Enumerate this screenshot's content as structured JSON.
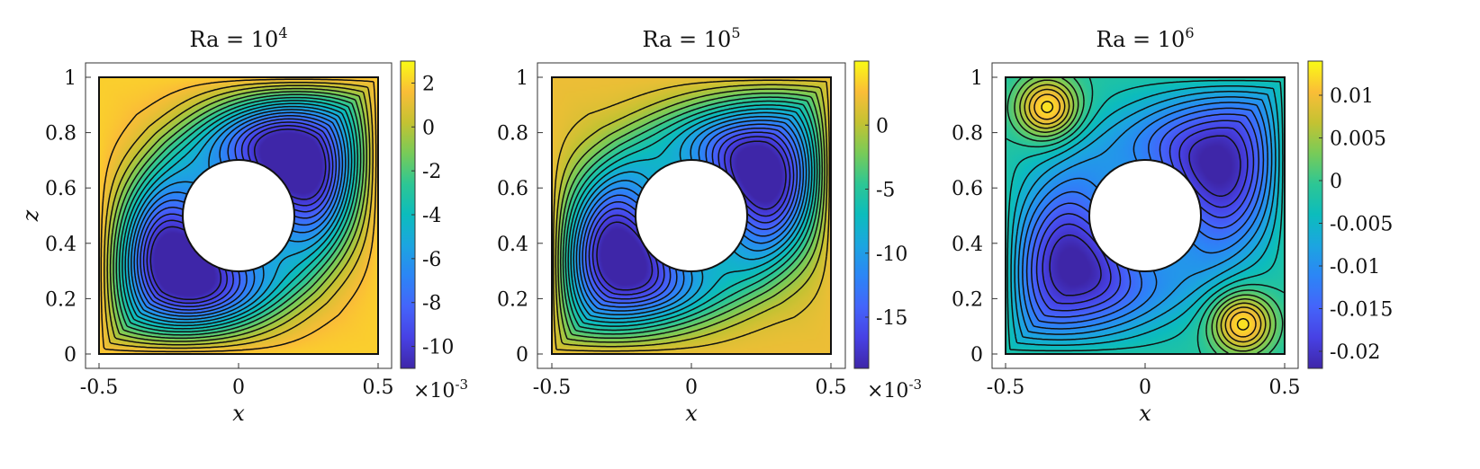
{
  "figure": {
    "panels": [
      {
        "title_base": "Ra = 10",
        "title_exp": "4",
        "cbar_multiplier": "×10",
        "cbar_multiplier_exp": "-3"
      },
      {
        "title_base": "Ra = 10",
        "title_exp": "5",
        "cbar_multiplier": "×10",
        "cbar_multiplier_exp": "-3"
      },
      {
        "title_base": "Ra = 10",
        "title_exp": "6",
        "cbar_multiplier": "",
        "cbar_multiplier_exp": ""
      }
    ]
  },
  "chart_data": [
    {
      "type": "heatmap",
      "title": "Ra = 10^4",
      "xlabel": "x",
      "ylabel": "z",
      "xlim": [
        -0.5,
        0.5
      ],
      "ylim": [
        0,
        1
      ],
      "xticks": [
        "-0.5",
        "0",
        "0.5"
      ],
      "yticks": [
        "0",
        "0.2",
        "0.4",
        "0.6",
        "0.8",
        "1"
      ],
      "colorbar": {
        "range": [
          -0.011,
          0.003
        ],
        "ticks": [
          "2",
          "0",
          "-2",
          "-4",
          "-6",
          "-8",
          "-10"
        ],
        "tick_values": [
          0.002,
          0,
          -0.002,
          -0.004,
          -0.006,
          -0.008,
          -0.01
        ],
        "multiplier": "×10^-3",
        "colormap": "parula"
      },
      "cylinder": {
        "center": [
          0,
          0.5
        ],
        "radius": 0.2
      },
      "vortex_centers": [
        {
          "x": 0.22,
          "z": 0.72,
          "value": -0.0105
        },
        {
          "x": -0.22,
          "z": 0.3,
          "value": -0.0105
        }
      ],
      "background_value": 0.002,
      "contour_levels": 18,
      "grid": false
    },
    {
      "type": "heatmap",
      "title": "Ra = 10^5",
      "xlabel": "x",
      "ylabel": "",
      "xlim": [
        -0.5,
        0.5
      ],
      "ylim": [
        0,
        1
      ],
      "xticks": [
        "-0.5",
        "0",
        "0.5"
      ],
      "yticks": [
        "0",
        "0.2",
        "0.4",
        "0.6",
        "0.8",
        "1"
      ],
      "colorbar": {
        "range": [
          -0.019,
          0.005
        ],
        "ticks": [
          "0",
          "-5",
          "-10",
          "-15"
        ],
        "tick_values": [
          0,
          -0.005,
          -0.01,
          -0.015
        ],
        "multiplier": "×10^-3",
        "colormap": "parula"
      },
      "cylinder": {
        "center": [
          0,
          0.5
        ],
        "radius": 0.2
      },
      "vortex_centers": [
        {
          "x": 0.29,
          "z": 0.67,
          "value": -0.018
        },
        {
          "x": -0.29,
          "z": 0.33,
          "value": -0.018
        }
      ],
      "background_value": 0.002,
      "contour_levels": 18,
      "grid": false
    },
    {
      "type": "heatmap",
      "title": "Ra = 10^6",
      "xlabel": "x",
      "ylabel": "",
      "xlim": [
        -0.5,
        0.5
      ],
      "ylim": [
        0,
        1
      ],
      "xticks": [
        "-0.5",
        "0",
        "0.5"
      ],
      "yticks": [
        "0",
        "0.2",
        "0.4",
        "0.6",
        "0.8",
        "1"
      ],
      "colorbar": {
        "range": [
          -0.022,
          0.014
        ],
        "ticks": [
          "0.01",
          "0.005",
          "0",
          "-0.005",
          "-0.01",
          "-0.015",
          "-0.02"
        ],
        "tick_values": [
          0.01,
          0.005,
          0,
          -0.005,
          -0.01,
          -0.015,
          -0.02
        ],
        "multiplier": "",
        "colormap": "parula"
      },
      "cylinder": {
        "center": [
          0,
          0.5
        ],
        "radius": 0.2
      },
      "vortex_centers": [
        {
          "x": 0.31,
          "z": 0.71,
          "value": -0.021
        },
        {
          "x": -0.31,
          "z": 0.29,
          "value": -0.021
        },
        {
          "x": -0.35,
          "z": 0.89,
          "value": 0.013
        },
        {
          "x": 0.35,
          "z": 0.11,
          "value": 0.013
        }
      ],
      "background_value": -0.002,
      "contour_levels": 18,
      "grid": false
    }
  ]
}
